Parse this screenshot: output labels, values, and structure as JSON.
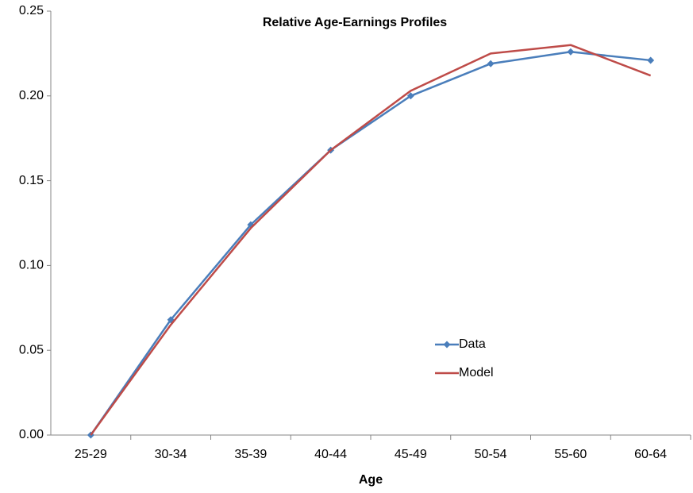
{
  "chart_data": {
    "type": "line",
    "title": "Relative Age-Earnings Profiles",
    "xlabel": "Age",
    "categories": [
      "25-29",
      "30-34",
      "35-39",
      "40-44",
      "45-49",
      "50-54",
      "55-60",
      "60-64"
    ],
    "series": [
      {
        "name": "Data",
        "color": "#4a7ebb",
        "marker": "diamond",
        "values": [
          0,
          0.068,
          0.124,
          0.168,
          0.2,
          0.219,
          0.226,
          0.221
        ]
      },
      {
        "name": "Model",
        "color": "#be4b48",
        "values": [
          0,
          0.065,
          0.122,
          0.168,
          0.203,
          0.225,
          0.23,
          0.212
        ]
      }
    ],
    "ylim": [
      0,
      0.25
    ],
    "yticks": [
      {
        "value": 0,
        "label": "0.00"
      },
      0.05,
      {
        "value": 0.1,
        "label": "0.10"
      },
      0.15,
      {
        "value": 0.2,
        "label": "0.20"
      },
      0.25
    ],
    "grid": false,
    "legend": "inside-right"
  }
}
